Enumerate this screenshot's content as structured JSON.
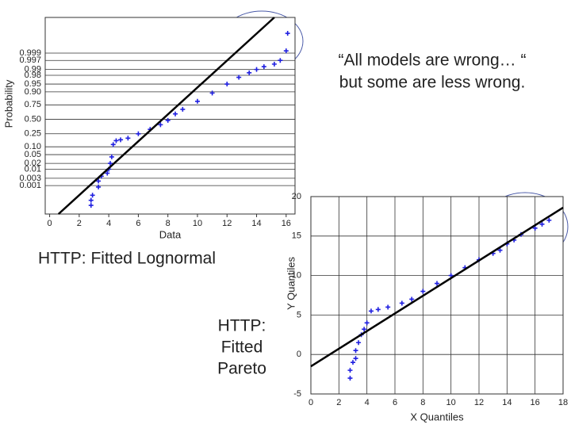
{
  "chart_data": [
    {
      "type": "probability",
      "title": [
        "HTTP: Fitted Lognormal"
      ],
      "annotation": [
        "“All models are wrong… “",
        "but some are less wrong."
      ],
      "xlabel": "Data",
      "ylabel": "Probability",
      "xlim": [
        -0.3,
        16.6
      ],
      "xticks": [
        0,
        2,
        4,
        6,
        8,
        10,
        12,
        14,
        16
      ],
      "yscale": "probit",
      "ylim": [
        5e-06,
        0.999999
      ],
      "yticks": [
        0.001,
        0.003,
        0.01,
        0.02,
        0.05,
        {
          "value": 0.1,
          "label": "0.10"
        },
        0.25,
        {
          "value": 0.5,
          "label": "0.50"
        },
        0.75,
        {
          "value": 0.9,
          "label": "0.90"
        },
        0.95,
        0.98,
        0.99,
        0.997,
        0.999
      ],
      "grid": "y",
      "x": [
        2.8,
        2.8,
        2.9,
        3.3,
        3.3,
        3.5,
        3.9,
        4.0,
        4.1,
        4.2,
        4.3,
        4.5,
        4.8,
        5.3,
        6.0,
        6.8,
        7.5,
        8.0,
        8.5,
        9.0,
        10.0,
        11.0,
        12.0,
        12.8,
        13.5,
        14.0,
        14.5,
        15.2,
        15.6,
        16.0,
        16.1
      ],
      "values": [
        3e-05,
        8e-05,
        0.0002,
        0.0008,
        0.002,
        0.004,
        0.006,
        0.01,
        0.02,
        0.04,
        0.12,
        0.16,
        0.17,
        0.19,
        0.25,
        0.32,
        0.4,
        0.48,
        0.6,
        0.68,
        0.8,
        0.89,
        0.95,
        0.975,
        0.985,
        0.99,
        0.993,
        0.995,
        0.997,
        0.9993,
        0.99997
      ],
      "color": "#1f1fe0",
      "fit": {
        "x": [
          0.6,
          15.2
        ],
        "values": [
          5e-06,
          0.999999
        ],
        "color": "#000000"
      }
    },
    {
      "type": "qq",
      "title": [
        "HTTP:",
        "Fitted",
        "Pareto"
      ],
      "xlabel": "X Quantiles",
      "ylabel": "Y Quantiles",
      "xlim": [
        0,
        18
      ],
      "xticks": [
        0,
        2,
        4,
        6,
        8,
        10,
        12,
        14,
        16,
        18
      ],
      "ylim": [
        -5,
        20
      ],
      "yticks": [
        -5,
        0,
        5,
        10,
        15,
        20
      ],
      "grid": "xy",
      "x": [
        2.8,
        2.8,
        3.0,
        3.2,
        3.2,
        3.4,
        3.6,
        3.8,
        4.0,
        4.3,
        4.8,
        5.5,
        6.5,
        7.2,
        8.0,
        9.0,
        10.0,
        11.0,
        12.0,
        13.0,
        13.5,
        14.0,
        14.5,
        15.0,
        16.0,
        16.5,
        17.0
      ],
      "values": [
        -3,
        -2,
        -1,
        -0.5,
        0.5,
        1.5,
        2.5,
        3.2,
        4,
        5.5,
        5.7,
        6,
        6.5,
        7,
        8,
        9,
        10,
        11,
        12,
        12.8,
        13.2,
        14,
        14.5,
        15.2,
        16,
        16.5,
        17
      ],
      "color": "#1f1fe0",
      "fit": {
        "x": [
          0,
          18
        ],
        "values": [
          -1.5,
          18.6
        ],
        "color": "#000000"
      }
    }
  ]
}
